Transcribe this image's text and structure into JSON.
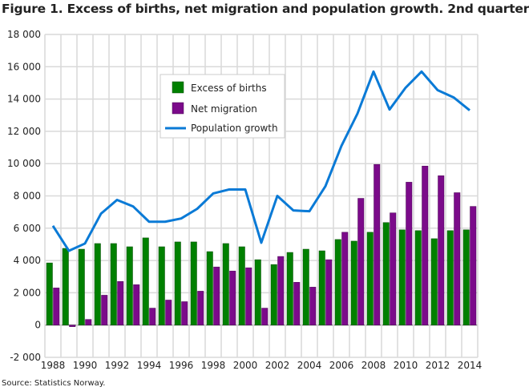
{
  "title": "Figure 1. Excess of births, net migration and population growth. 2nd quarter",
  "source": "Source: Statistics Norway.",
  "chart_data": {
    "type": "bar+line",
    "title": "Figure 1. Excess of births, net migration and population growth. 2nd quarter",
    "categories": [
      1988,
      1989,
      1990,
      1991,
      1992,
      1993,
      1994,
      1995,
      1996,
      1997,
      1998,
      1999,
      2000,
      2001,
      2002,
      2003,
      2004,
      2005,
      2006,
      2007,
      2008,
      2009,
      2010,
      2011,
      2012,
      2013,
      2014
    ],
    "x_tick_labels": [
      "1988",
      "1990",
      "1992",
      "1994",
      "1996",
      "1998",
      "2000",
      "2002",
      "2004",
      "2006",
      "2008",
      "2010",
      "2012",
      "2014"
    ],
    "y_tick_labels": [
      "-2 000",
      "0",
      "2 000",
      "4 000",
      "6 000",
      "8 000",
      "10 000",
      "12 000",
      "14 000",
      "16 000",
      "18 000"
    ],
    "ylim": [
      -2000,
      18000
    ],
    "grid": true,
    "legend_position": "top-left-inside",
    "series": [
      {
        "name": "Excess of births",
        "type": "bar",
        "color": "#008000",
        "values": [
          3850,
          4750,
          4700,
          5050,
          5050,
          4850,
          5400,
          4850,
          5150,
          5150,
          4550,
          5050,
          4850,
          4050,
          3750,
          4500,
          4700,
          4600,
          5300,
          5200,
          5750,
          6350,
          5900,
          5850,
          5350,
          5850,
          5900
        ]
      },
      {
        "name": "Net migration",
        "type": "bar",
        "color": "#7b0a8a",
        "values": [
          2300,
          -100,
          350,
          1850,
          2700,
          2500,
          1050,
          1550,
          1450,
          2100,
          3600,
          3350,
          3550,
          1050,
          4250,
          2650,
          2350,
          4050,
          5750,
          7850,
          9950,
          6950,
          8850,
          9850,
          9250,
          8200,
          7350
        ]
      },
      {
        "name": "Population growth",
        "type": "line",
        "color": "#0a7ad6",
        "values": [
          6150,
          4600,
          5050,
          6900,
          7750,
          7350,
          6400,
          6400,
          6600,
          7200,
          8150,
          8400,
          8400,
          5100,
          8000,
          7100,
          7050,
          8600,
          11100,
          13100,
          15700,
          13350,
          14700,
          15700,
          14550,
          14100,
          13300
        ]
      }
    ]
  }
}
